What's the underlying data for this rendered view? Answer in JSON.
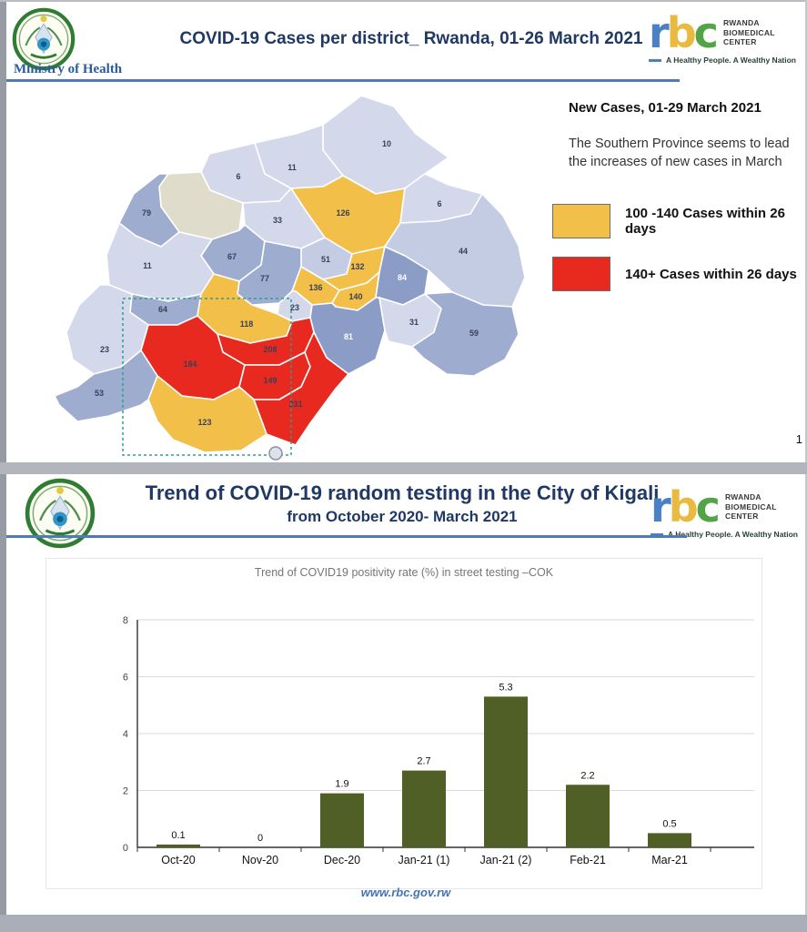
{
  "slide1": {
    "ministry_logo_text": "Ministry of Health",
    "title": "COVID-19 Cases per district_ Rwanda, 01-26 March 2021",
    "notes_heading": "New Cases, 01-29 March 2021",
    "notes_body": "The Southern Province seems to lead the increases of new cases in March",
    "legend": [
      {
        "label": "100 -140 Cases within 26 days",
        "color": "#F2BF49"
      },
      {
        "label": "140+ Cases within 26 days",
        "color": "#E8291F"
      }
    ],
    "page_number": "1",
    "map": {
      "palette": {
        "pale": "#d3d9ea",
        "pale2": "#c3cce2",
        "medium": "#9daccf",
        "dark": "#8b9cc7",
        "beige": "#e0dccb",
        "yellow": "#F2BF49",
        "red": "#E8291F",
        "label": "#39415a",
        "label_on_dark": "#ffffff",
        "border": "#ffffff",
        "selection_box": "#2e9e8e"
      },
      "districts": [
        {
          "value": "10",
          "band": "pale"
        },
        {
          "value": "11",
          "band": "pale"
        },
        {
          "value": "6",
          "band": "pale"
        },
        {
          "value": "",
          "band": "beige"
        },
        {
          "value": "79",
          "band": "medium"
        },
        {
          "value": "126",
          "band": "yellow"
        },
        {
          "value": "6",
          "band": "pale"
        },
        {
          "value": "33",
          "band": "pale"
        },
        {
          "value": "51",
          "band": "pale2"
        },
        {
          "value": "44",
          "band": "pale2"
        },
        {
          "value": "67",
          "band": "medium"
        },
        {
          "value": "11",
          "band": "pale"
        },
        {
          "value": "77",
          "band": "medium"
        },
        {
          "value": "132",
          "band": "yellow"
        },
        {
          "value": "136",
          "band": "yellow"
        },
        {
          "value": "140",
          "band": "yellow"
        },
        {
          "value": "23",
          "band": "pale"
        },
        {
          "value": "84",
          "band": "dark"
        },
        {
          "value": "64",
          "band": "medium"
        },
        {
          "value": "118",
          "band": "yellow"
        },
        {
          "value": "81",
          "band": "dark"
        },
        {
          "value": "31",
          "band": "pale"
        },
        {
          "value": "59",
          "band": "medium"
        },
        {
          "value": "23",
          "band": "pale"
        },
        {
          "value": "208",
          "band": "red"
        },
        {
          "value": "184",
          "band": "red"
        },
        {
          "value": "149",
          "band": "red"
        },
        {
          "value": "231",
          "band": "red"
        },
        {
          "value": "53",
          "band": "medium"
        },
        {
          "value": "123",
          "band": "yellow"
        }
      ]
    }
  },
  "slide2": {
    "title": "Trend of COVID-19 random testing in the City of Kigali",
    "subtitle": "from October 2020- March 2021",
    "footer_link": "www.rbc.gov.rw"
  },
  "rbc_logo": {
    "letters": [
      {
        "char": "r",
        "color": "#4a80c4"
      },
      {
        "char": "b",
        "color": "#eab93f"
      },
      {
        "char": "c",
        "color": "#53a447"
      }
    ],
    "name_lines": [
      "RWANDA",
      "BIOMEDICAL",
      "CENTER"
    ],
    "tagline": "A Healthy People. A Wealthy Nation"
  },
  "chart_data": {
    "type": "bar",
    "title": "Trend of COVID19 positivity rate (%) in street testing –COK",
    "categories": [
      "Oct-20",
      "Nov-20",
      "Dec-20",
      "Jan-21 (1)",
      "Jan-21 (2)",
      "Feb-21",
      "Mar-21"
    ],
    "values": [
      0.1,
      0,
      1.9,
      2.7,
      5.3,
      2.2,
      0.5
    ],
    "xlabel": "",
    "ylabel": "",
    "ylim": [
      0,
      8
    ],
    "yticks": [
      0,
      2,
      4,
      6,
      8
    ],
    "bar_color": "#4F5F26",
    "grid": true,
    "legend_position": "none"
  }
}
